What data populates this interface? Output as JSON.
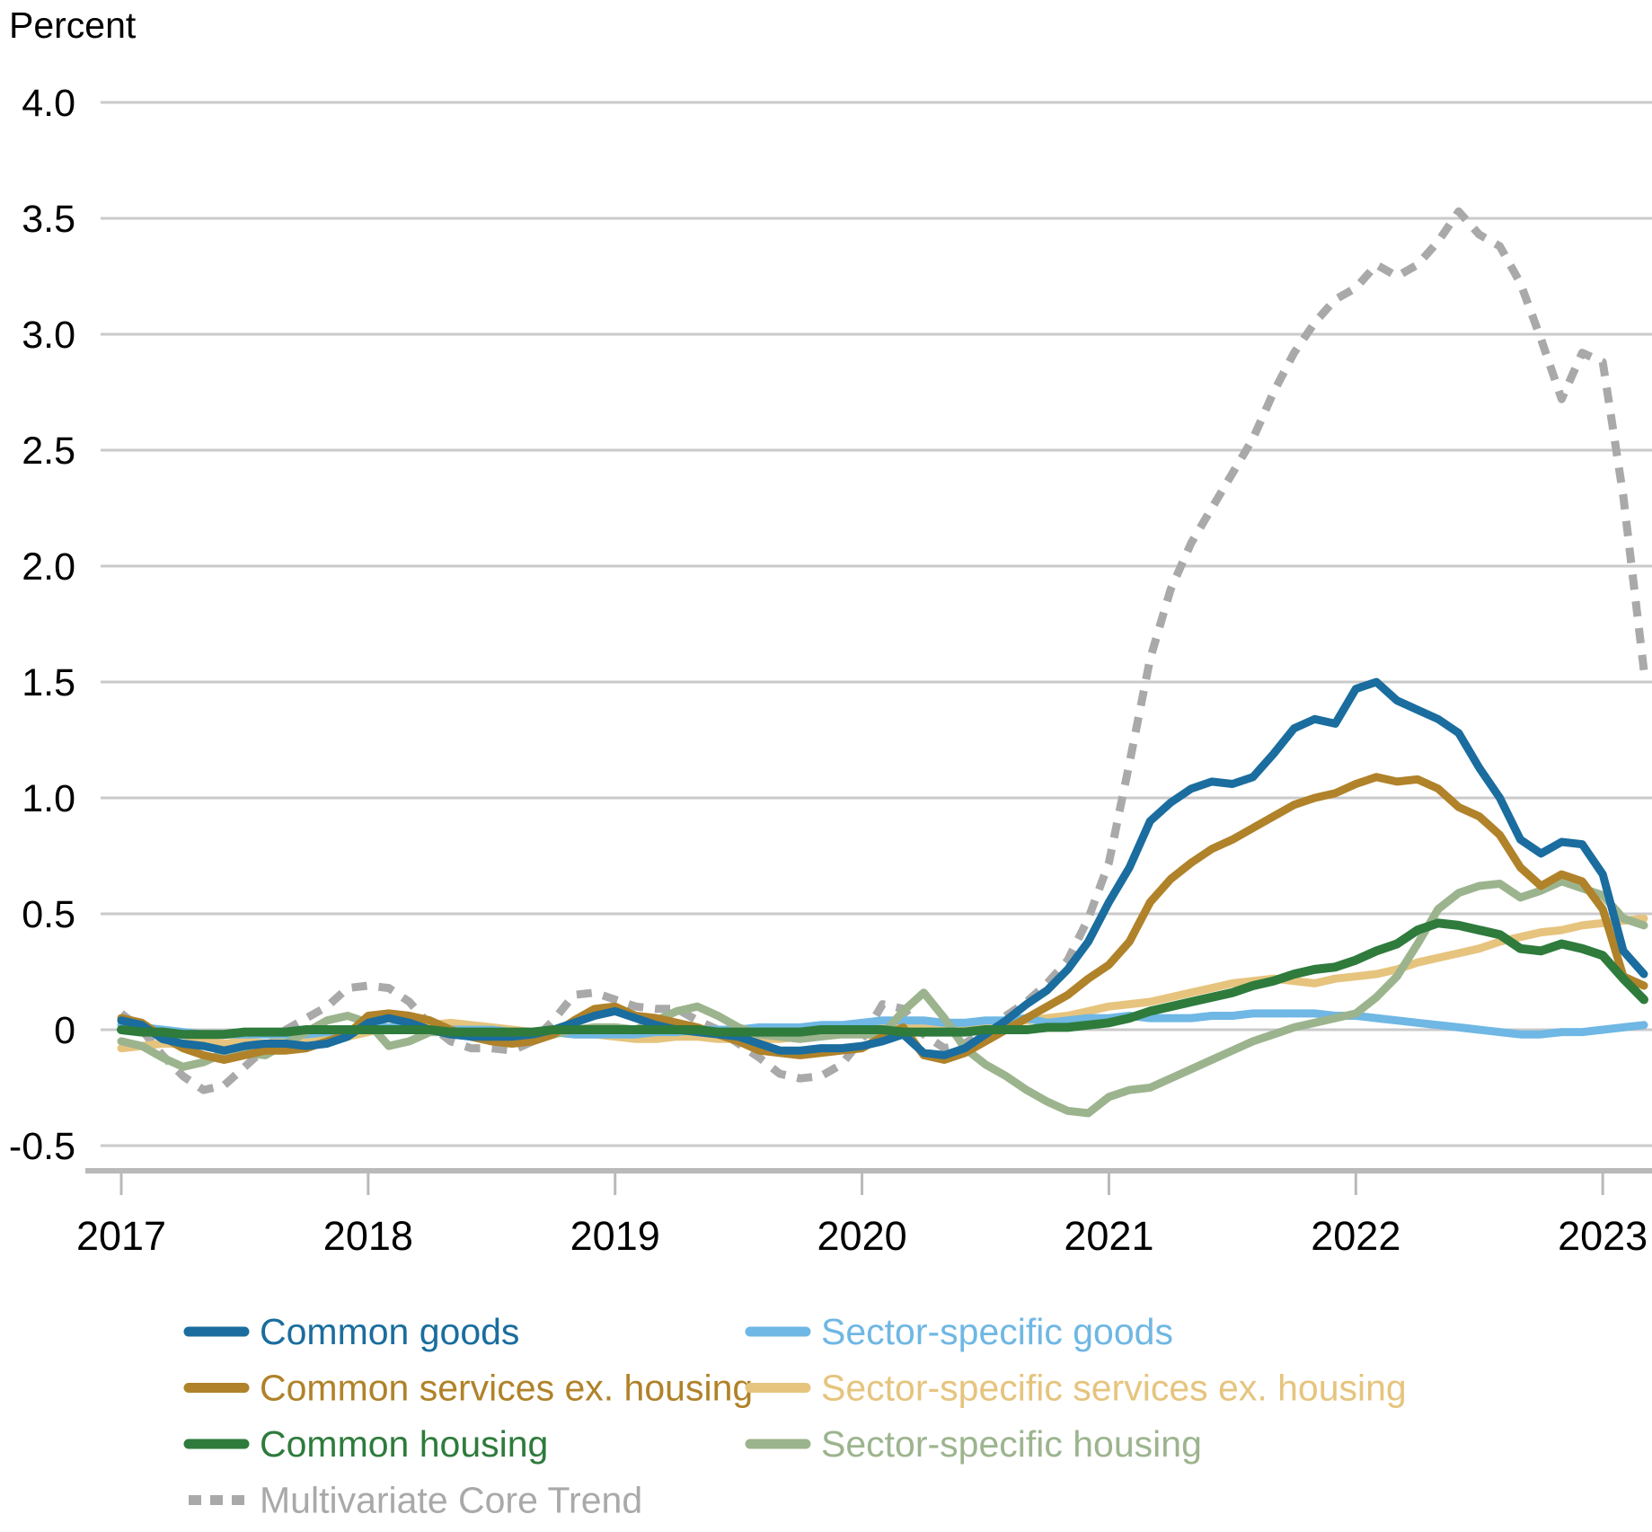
{
  "chart": {
    "title": "Percent"
  },
  "chart_data": {
    "type": "line",
    "title": "Percent",
    "ylabel": "Percent",
    "xlabel": "",
    "ylim": [
      -0.5,
      4.0
    ],
    "y_step": 0.5,
    "y_tick_labels": [
      "4.0",
      "3.5",
      "3.0",
      "2.5",
      "2.0",
      "1.5",
      "1.0",
      "0.5",
      "0",
      "-0.5"
    ],
    "x_tick_labels": [
      "2017",
      "2018",
      "2019",
      "2020",
      "2021",
      "2022",
      "2023"
    ],
    "grid": "horizontal",
    "legend_position": "bottom",
    "x": [
      "2017-01",
      "2017-02",
      "2017-03",
      "2017-04",
      "2017-05",
      "2017-06",
      "2017-07",
      "2017-08",
      "2017-09",
      "2017-10",
      "2017-11",
      "2017-12",
      "2018-01",
      "2018-02",
      "2018-03",
      "2018-04",
      "2018-05",
      "2018-06",
      "2018-07",
      "2018-08",
      "2018-09",
      "2018-10",
      "2018-11",
      "2018-12",
      "2019-01",
      "2019-02",
      "2019-03",
      "2019-04",
      "2019-05",
      "2019-06",
      "2019-07",
      "2019-08",
      "2019-09",
      "2019-10",
      "2019-11",
      "2019-12",
      "2020-01",
      "2020-02",
      "2020-03",
      "2020-04",
      "2020-05",
      "2020-06",
      "2020-07",
      "2020-08",
      "2020-09",
      "2020-10",
      "2020-11",
      "2020-12",
      "2021-01",
      "2021-02",
      "2021-03",
      "2021-04",
      "2021-05",
      "2021-06",
      "2021-07",
      "2021-08",
      "2021-09",
      "2021-10",
      "2021-11",
      "2021-12",
      "2022-01",
      "2022-02",
      "2022-03",
      "2022-04",
      "2022-05",
      "2022-06",
      "2022-07",
      "2022-08",
      "2022-09",
      "2022-10",
      "2022-11",
      "2022-12",
      "2023-01",
      "2023-02",
      "2023-03"
    ],
    "draw_order": [
      "mct",
      "sector_services",
      "sector_goods",
      "sector_housing",
      "common_services",
      "common_goods",
      "common_housing"
    ],
    "series": [
      {
        "key": "common_goods",
        "name": "Common goods",
        "color": "#1A6D9E",
        "dash": false,
        "width": 9,
        "values": [
          0.04,
          0.02,
          -0.04,
          -0.06,
          -0.07,
          -0.09,
          -0.07,
          -0.06,
          -0.06,
          -0.07,
          -0.06,
          -0.03,
          0.03,
          0.05,
          0.03,
          0.0,
          -0.02,
          -0.03,
          -0.03,
          -0.03,
          -0.02,
          0.0,
          0.03,
          0.06,
          0.08,
          0.05,
          0.02,
          0.0,
          -0.01,
          -0.02,
          -0.03,
          -0.06,
          -0.09,
          -0.09,
          -0.08,
          -0.08,
          -0.07,
          -0.05,
          -0.02,
          -0.1,
          -0.11,
          -0.08,
          -0.02,
          0.04,
          0.11,
          0.17,
          0.26,
          0.38,
          0.55,
          0.7,
          0.9,
          0.98,
          1.04,
          1.07,
          1.06,
          1.09,
          1.19,
          1.3,
          1.34,
          1.32,
          1.47,
          1.5,
          1.42,
          1.38,
          1.34,
          1.28,
          1.13,
          1.0,
          0.82,
          0.76,
          0.81,
          0.8,
          0.67,
          0.34,
          0.24
        ]
      },
      {
        "key": "sector_goods",
        "name": "Sector-specific goods",
        "color": "#6FB7E4",
        "dash": false,
        "width": 9,
        "values": [
          0.02,
          0.01,
          0.0,
          -0.01,
          -0.02,
          -0.02,
          -0.02,
          -0.02,
          -0.02,
          -0.02,
          -0.01,
          0.0,
          0.01,
          0.01,
          0.01,
          0.0,
          0.0,
          0.0,
          0.0,
          -0.01,
          -0.01,
          -0.01,
          -0.02,
          -0.02,
          -0.02,
          -0.02,
          -0.01,
          -0.01,
          0.0,
          0.0,
          0.0,
          0.01,
          0.01,
          0.01,
          0.02,
          0.02,
          0.03,
          0.04,
          0.04,
          0.04,
          0.03,
          0.03,
          0.04,
          0.04,
          0.05,
          0.03,
          0.04,
          0.05,
          0.05,
          0.06,
          0.05,
          0.05,
          0.05,
          0.06,
          0.06,
          0.07,
          0.07,
          0.07,
          0.07,
          0.06,
          0.06,
          0.05,
          0.04,
          0.03,
          0.02,
          0.01,
          0.0,
          -0.01,
          -0.02,
          -0.02,
          -0.01,
          -0.01,
          0.0,
          0.01,
          0.02
        ]
      },
      {
        "key": "common_services",
        "name": "Common services ex. housing",
        "color": "#B08229",
        "dash": false,
        "width": 9,
        "values": [
          0.05,
          0.03,
          -0.03,
          -0.08,
          -0.11,
          -0.13,
          -0.11,
          -0.09,
          -0.09,
          -0.08,
          -0.05,
          -0.02,
          0.06,
          0.07,
          0.06,
          0.04,
          0.0,
          -0.03,
          -0.05,
          -0.06,
          -0.05,
          -0.02,
          0.04,
          0.09,
          0.1,
          0.06,
          0.05,
          0.03,
          0.01,
          -0.02,
          -0.05,
          -0.09,
          -0.1,
          -0.11,
          -0.1,
          -0.09,
          -0.08,
          -0.03,
          0.01,
          -0.11,
          -0.13,
          -0.1,
          -0.05,
          0.0,
          0.05,
          0.1,
          0.15,
          0.22,
          0.28,
          0.38,
          0.55,
          0.65,
          0.72,
          0.78,
          0.82,
          0.87,
          0.92,
          0.97,
          1.0,
          1.02,
          1.06,
          1.09,
          1.07,
          1.08,
          1.04,
          0.96,
          0.92,
          0.84,
          0.7,
          0.62,
          0.67,
          0.64,
          0.52,
          0.23,
          0.19
        ]
      },
      {
        "key": "sector_services",
        "name": "Sector-specific services ex. housing",
        "color": "#E6C47E",
        "dash": false,
        "width": 9,
        "values": [
          -0.08,
          -0.07,
          -0.06,
          -0.06,
          -0.05,
          -0.06,
          -0.05,
          -0.06,
          -0.05,
          -0.04,
          -0.04,
          -0.03,
          -0.01,
          0.01,
          0.02,
          0.02,
          0.03,
          0.02,
          0.01,
          0.0,
          -0.01,
          -0.01,
          -0.02,
          -0.02,
          -0.03,
          -0.04,
          -0.04,
          -0.03,
          -0.03,
          -0.04,
          -0.04,
          -0.04,
          -0.04,
          -0.03,
          -0.02,
          -0.01,
          0.0,
          0.01,
          0.02,
          0.01,
          0.02,
          0.02,
          0.03,
          0.03,
          0.04,
          0.05,
          0.06,
          0.08,
          0.1,
          0.11,
          0.12,
          0.14,
          0.16,
          0.18,
          0.2,
          0.21,
          0.22,
          0.21,
          0.2,
          0.22,
          0.23,
          0.24,
          0.26,
          0.29,
          0.31,
          0.33,
          0.35,
          0.38,
          0.4,
          0.42,
          0.43,
          0.45,
          0.46,
          0.47,
          0.48
        ]
      },
      {
        "key": "common_housing",
        "name": "Common housing",
        "color": "#2E7B3C",
        "dash": false,
        "width": 10,
        "values": [
          0.0,
          -0.01,
          -0.01,
          -0.02,
          -0.02,
          -0.02,
          -0.01,
          -0.01,
          -0.01,
          0.0,
          0.0,
          0.0,
          0.0,
          0.0,
          0.0,
          0.0,
          -0.01,
          -0.01,
          -0.01,
          -0.01,
          -0.01,
          0.0,
          0.0,
          0.0,
          0.0,
          0.0,
          0.0,
          0.0,
          0.0,
          -0.01,
          -0.01,
          -0.01,
          -0.01,
          -0.01,
          0.0,
          0.0,
          0.0,
          0.0,
          -0.01,
          -0.01,
          -0.01,
          -0.01,
          0.0,
          0.0,
          0.0,
          0.01,
          0.01,
          0.02,
          0.03,
          0.05,
          0.08,
          0.1,
          0.12,
          0.14,
          0.16,
          0.19,
          0.21,
          0.24,
          0.26,
          0.27,
          0.3,
          0.34,
          0.37,
          0.43,
          0.46,
          0.45,
          0.43,
          0.41,
          0.35,
          0.34,
          0.37,
          0.35,
          0.32,
          0.22,
          0.13
        ]
      },
      {
        "key": "sector_housing",
        "name": "Sector-specific housing",
        "color": "#9CB48E",
        "dash": false,
        "width": 9,
        "values": [
          -0.05,
          -0.07,
          -0.12,
          -0.16,
          -0.14,
          -0.1,
          -0.1,
          -0.11,
          -0.06,
          -0.01,
          0.04,
          0.06,
          0.03,
          -0.07,
          -0.05,
          -0.01,
          -0.01,
          -0.03,
          -0.05,
          -0.05,
          -0.04,
          -0.02,
          0.0,
          0.01,
          0.01,
          0.0,
          0.04,
          0.08,
          0.1,
          0.06,
          0.01,
          -0.02,
          -0.03,
          -0.04,
          -0.03,
          -0.02,
          -0.02,
          -0.02,
          0.08,
          0.16,
          0.05,
          -0.08,
          -0.15,
          -0.2,
          -0.26,
          -0.31,
          -0.35,
          -0.36,
          -0.29,
          -0.26,
          -0.25,
          -0.21,
          -0.17,
          -0.13,
          -0.09,
          -0.05,
          -0.02,
          0.01,
          0.03,
          0.05,
          0.07,
          0.14,
          0.23,
          0.37,
          0.52,
          0.59,
          0.62,
          0.63,
          0.57,
          0.6,
          0.64,
          0.61,
          0.58,
          0.48,
          0.45
        ]
      },
      {
        "key": "mct",
        "name": "Multivariate Core Trend",
        "color": "#A9A9A9",
        "dash": true,
        "width": 9,
        "values": [
          0.07,
          0.0,
          -0.11,
          -0.2,
          -0.26,
          -0.24,
          -0.16,
          -0.08,
          0.0,
          0.05,
          0.1,
          0.18,
          0.19,
          0.18,
          0.12,
          0.02,
          -0.05,
          -0.08,
          -0.08,
          -0.09,
          -0.05,
          0.04,
          0.15,
          0.16,
          0.13,
          0.1,
          0.09,
          0.09,
          0.04,
          0.0,
          -0.06,
          -0.12,
          -0.19,
          -0.21,
          -0.2,
          -0.15,
          -0.04,
          0.11,
          0.09,
          -0.02,
          -0.08,
          -0.06,
          0.0,
          0.06,
          0.12,
          0.2,
          0.3,
          0.48,
          0.72,
          1.15,
          1.6,
          1.9,
          2.1,
          2.25,
          2.4,
          2.55,
          2.75,
          2.92,
          3.05,
          3.15,
          3.2,
          3.3,
          3.25,
          3.3,
          3.4,
          3.53,
          3.43,
          3.38,
          3.22,
          2.98,
          2.72,
          2.92,
          2.88,
          2.3,
          1.55
        ]
      }
    ]
  },
  "legend": {
    "items": [
      {
        "series": "common_goods",
        "col": 0,
        "row": 0
      },
      {
        "series": "sector_goods",
        "col": 1,
        "row": 0
      },
      {
        "series": "common_services",
        "col": 0,
        "row": 1
      },
      {
        "series": "sector_services",
        "col": 1,
        "row": 1
      },
      {
        "series": "common_housing",
        "col": 0,
        "row": 2
      },
      {
        "series": "sector_housing",
        "col": 1,
        "row": 2
      },
      {
        "series": "mct",
        "col": 0,
        "row": 3
      }
    ]
  }
}
